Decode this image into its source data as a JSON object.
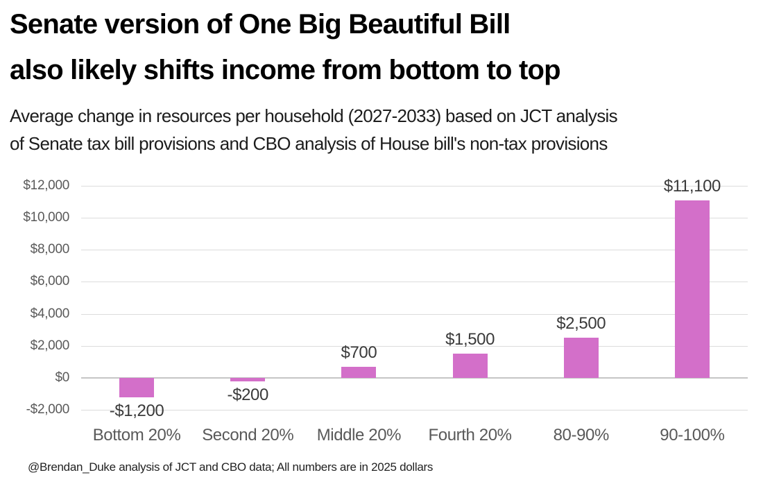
{
  "header": {
    "title_line1": "Senate version of One Big Beautiful Bill",
    "title_line2": "also likely shifts income from bottom to top",
    "subtitle_line1": "Average change in resources per household (2027-2033) based on JCT analysis",
    "subtitle_line2": "of Senate tax bill provisions and CBO analysis of House bill's non-tax provisions"
  },
  "chart_data": {
    "type": "bar",
    "title": "Senate version of One Big Beautiful Bill also likely shifts income from bottom to top",
    "subtitle": "Average change in resources per household (2027-2033) based on JCT analysis of Senate tax bill provisions and CBO analysis of House bill's non-tax provisions",
    "categories": [
      "Bottom 20%",
      "Second 20%",
      "Middle 20%",
      "Fourth 20%",
      "80-90%",
      "90-100%"
    ],
    "values": [
      -1200,
      -200,
      700,
      1500,
      2500,
      11100
    ],
    "value_labels": [
      "-$1,200",
      "-$200",
      "$700",
      "$1,500",
      "$2,500",
      "$11,100"
    ],
    "xlabel": "",
    "ylabel": "",
    "ylim": [
      -2000,
      12000
    ],
    "y_tick_step": 2000,
    "y_ticks": [
      {
        "value": 12000,
        "label": "$12,000"
      },
      {
        "value": 10000,
        "label": "$10,000"
      },
      {
        "value": 8000,
        "label": "$8,000"
      },
      {
        "value": 6000,
        "label": "$6,000"
      },
      {
        "value": 4000,
        "label": "$4,000"
      },
      {
        "value": 2000,
        "label": "$2,000"
      },
      {
        "value": 0,
        "label": "$0"
      },
      {
        "value": -2000,
        "label": "-$2,000"
      }
    ],
    "grid": "horizontal",
    "legend": "none",
    "bar_color": "#d36fc9",
    "gridline_color": "#dcdcdc",
    "zero_line_color": "#c5c5c5",
    "axis_label_color": "#595959",
    "value_label_color": "#3a3a3a",
    "source_note": "@Brendan_Duke analysis of JCT and CBO data; All numbers are in 2025 dollars"
  }
}
